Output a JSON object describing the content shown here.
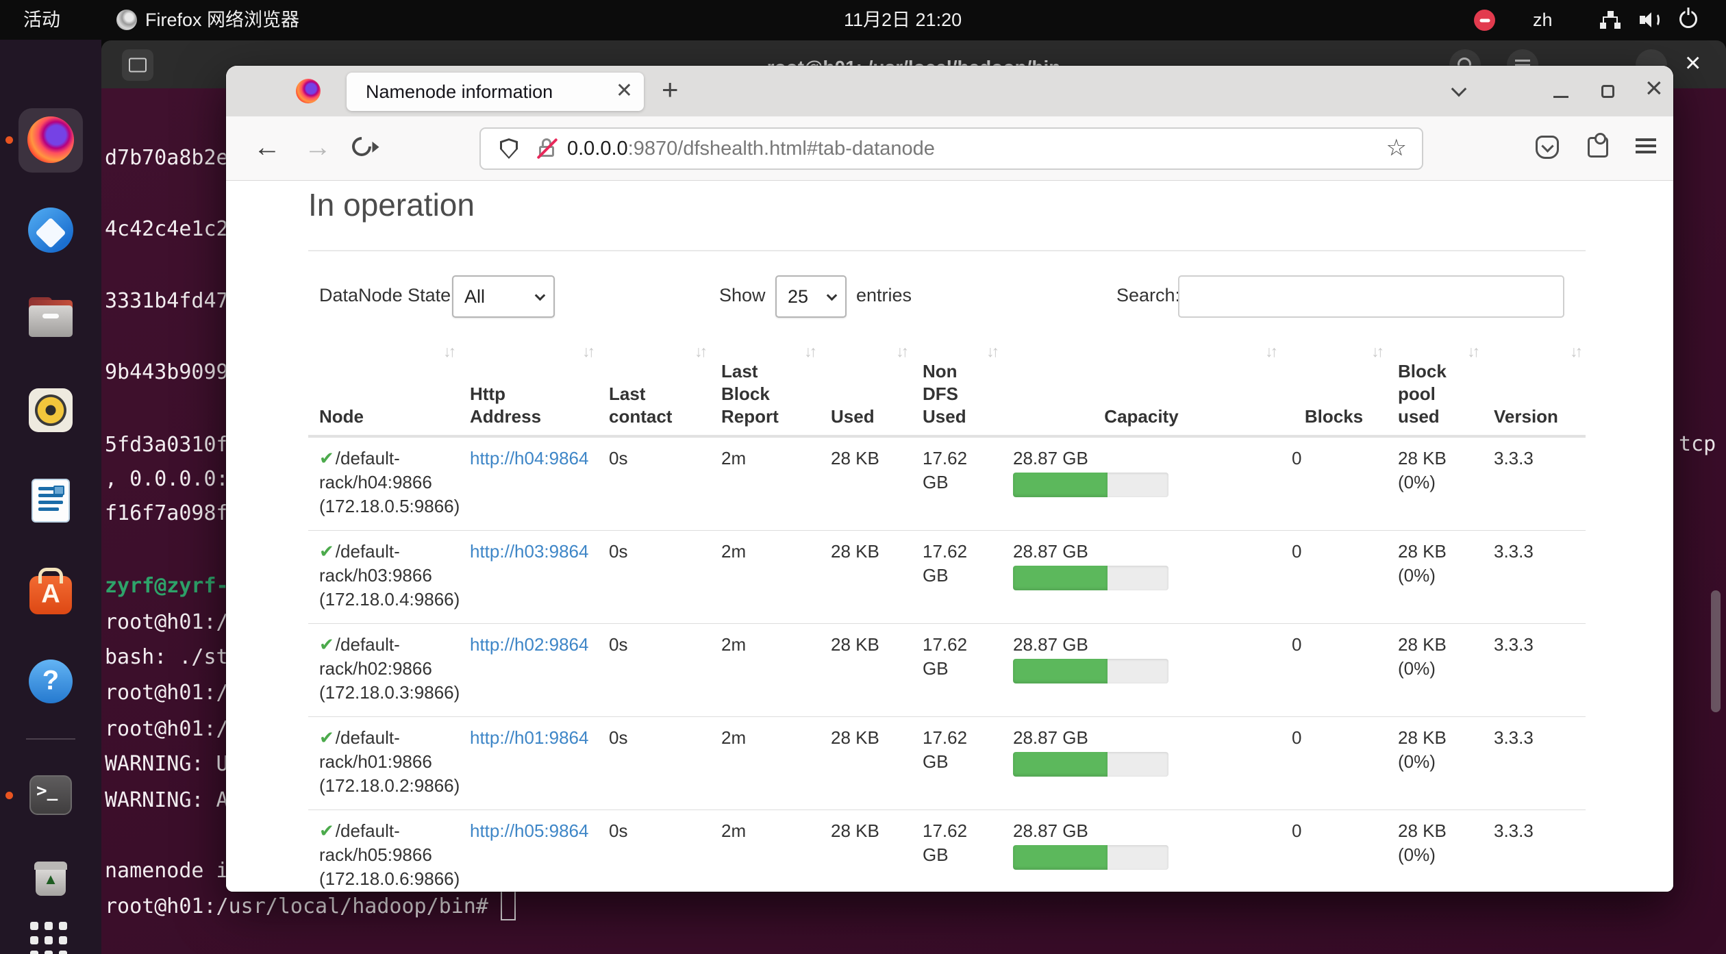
{
  "top_bar": {
    "activities_label": "活动",
    "app_title": "Firefox 网络浏览器",
    "clock": "11月2日 21:20",
    "input_method_badge": "zh"
  },
  "terminal": {
    "title": "root@h01: /usr/local/hadoop/bin",
    "side_lines": [
      "d7b70a8b2e",
      "4c42c4e1c2",
      "3331b4fd47",
      "9b443b9099",
      "5fd3a0310f",
      ", 0.0.0.0:",
      "f16f7a098f",
      "zyrf@zyrf-",
      "root@h01:/",
      "bash: ./st",
      "root@h01:/",
      "root@h01:/",
      "WARNING: U",
      "WARNING: A",
      "namenode i"
    ],
    "prompt_line": "root@h01:/usr/local/hadoop/bin# ",
    "right_text": "tcp"
  },
  "browser": {
    "tab_title": "Namenode information",
    "url_host": "0.0.0.0",
    "url_path": ":9870/dfshealth.html#tab-datanode"
  },
  "dfshealth": {
    "heading": "In operation",
    "controls": {
      "state_label": "DataNode State",
      "state_value": "All",
      "show_label": "Show",
      "show_value": "25",
      "entries_label": "entries",
      "search_label": "Search:"
    },
    "table": {
      "headers": [
        "Node",
        "Http\nAddress",
        "Last\ncontact",
        "Last\nBlock\nReport",
        "Used",
        "Non\nDFS\nUsed",
        "Capacity",
        "Blocks",
        "Block\npool\nused",
        "Version"
      ],
      "rows": [
        {
          "node_l1": "/default-",
          "node_l2": "rack/h04:9866",
          "node_l3": "(172.18.0.5:9866)",
          "http": "http://h04:9864",
          "last_contact": "0s",
          "last_block_report": "2m",
          "used": "28 KB",
          "non_dfs_used": "17.62 GB",
          "capacity": "28.87 GB",
          "capacity_pct": 61,
          "blocks": "0",
          "block_pool_l1": "28 KB",
          "block_pool_l2": "(0%)",
          "version": "3.3.3"
        },
        {
          "node_l1": "/default-",
          "node_l2": "rack/h03:9866",
          "node_l3": "(172.18.0.4:9866)",
          "http": "http://h03:9864",
          "last_contact": "0s",
          "last_block_report": "2m",
          "used": "28 KB",
          "non_dfs_used": "17.62 GB",
          "capacity": "28.87 GB",
          "capacity_pct": 61,
          "blocks": "0",
          "block_pool_l1": "28 KB",
          "block_pool_l2": "(0%)",
          "version": "3.3.3"
        },
        {
          "node_l1": "/default-",
          "node_l2": "rack/h02:9866",
          "node_l3": "(172.18.0.3:9866)",
          "http": "http://h02:9864",
          "last_contact": "0s",
          "last_block_report": "2m",
          "used": "28 KB",
          "non_dfs_used": "17.62 GB",
          "capacity": "28.87 GB",
          "capacity_pct": 61,
          "blocks": "0",
          "block_pool_l1": "28 KB",
          "block_pool_l2": "(0%)",
          "version": "3.3.3"
        },
        {
          "node_l1": "/default-",
          "node_l2": "rack/h01:9866",
          "node_l3": "(172.18.0.2:9866)",
          "http": "http://h01:9864",
          "last_contact": "0s",
          "last_block_report": "2m",
          "used": "28 KB",
          "non_dfs_used": "17.62 GB",
          "capacity": "28.87 GB",
          "capacity_pct": 61,
          "blocks": "0",
          "block_pool_l1": "28 KB",
          "block_pool_l2": "(0%)",
          "version": "3.3.3"
        },
        {
          "node_l1": "/default-",
          "node_l2": "rack/h05:9866",
          "node_l3": "(172.18.0.6:9866)",
          "http": "http://h05:9864",
          "last_contact": "0s",
          "last_block_report": "2m",
          "used": "28 KB",
          "non_dfs_used": "17.62 GB",
          "capacity": "28.87 GB",
          "capacity_pct": 61,
          "blocks": "0",
          "block_pool_l1": "28 KB",
          "block_pool_l2": "(0%)",
          "version": "3.3.3"
        }
      ]
    }
  }
}
